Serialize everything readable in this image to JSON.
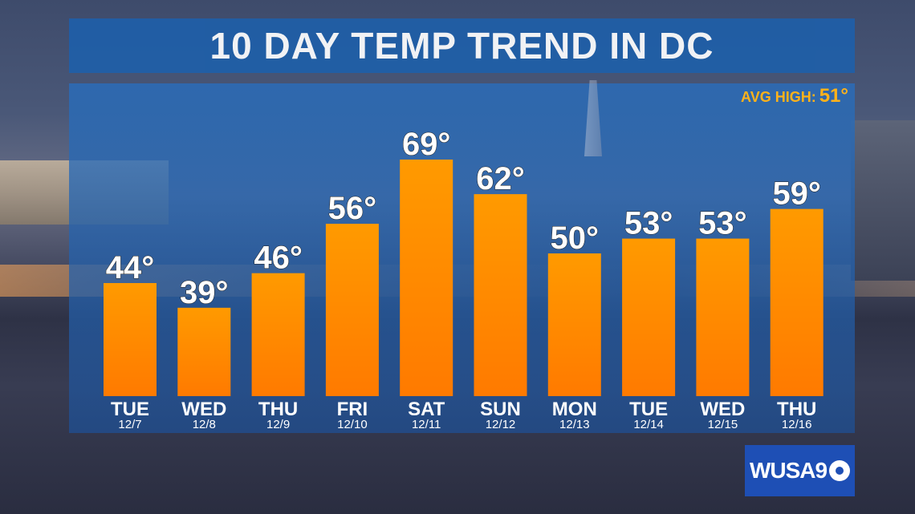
{
  "title": "10 DAY TEMP TREND IN DC",
  "avg_high": {
    "label": "AVG HIGH:",
    "value": "51°"
  },
  "logo": {
    "text": "WUSA9"
  },
  "colors": {
    "bar_top": "#ff9a00",
    "bar_bottom": "#ff7a00",
    "title_bar": "#1f5fa8",
    "accent": "#ffb21a"
  },
  "chart_data": {
    "type": "bar",
    "title": "10 DAY TEMP TREND IN DC",
    "categories": [
      "TUE",
      "WED",
      "THU",
      "FRI",
      "SAT",
      "SUN",
      "MON",
      "TUE",
      "WED",
      "THU"
    ],
    "dates": [
      "12/7",
      "12/8",
      "12/9",
      "12/10",
      "12/11",
      "12/12",
      "12/13",
      "12/14",
      "12/15",
      "12/16"
    ],
    "values": [
      44,
      39,
      46,
      56,
      69,
      62,
      50,
      53,
      53,
      59
    ],
    "value_labels": [
      "44°",
      "39°",
      "46°",
      "56°",
      "69°",
      "62°",
      "50°",
      "53°",
      "53°",
      "59°"
    ],
    "unit": "°",
    "grid": false,
    "legend": "none"
  }
}
